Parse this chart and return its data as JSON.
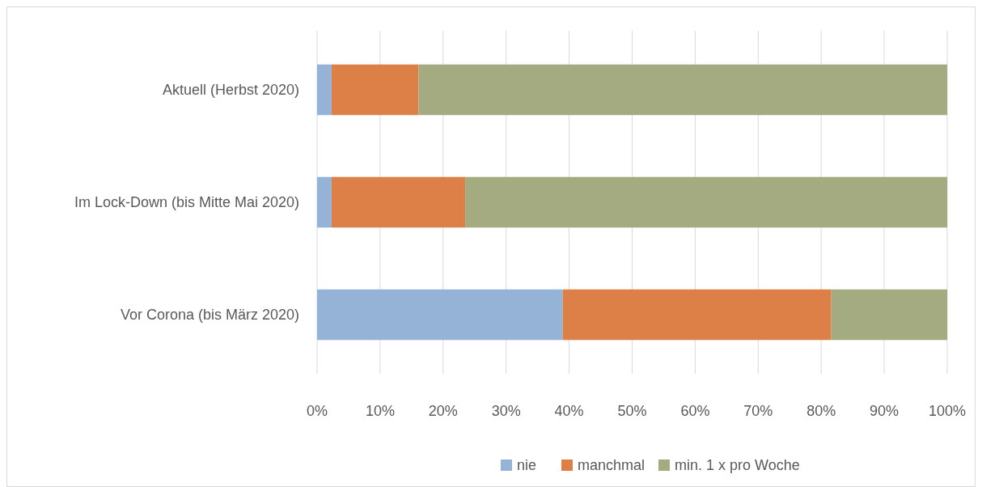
{
  "chart_data": {
    "type": "bar",
    "orientation": "horizontal",
    "stacked": true,
    "categories": [
      "Aktuell (Herbst 2020)",
      "Im Lock-Down (bis Mitte Mai 2020)",
      "Vor Corona (bis März 2020)"
    ],
    "series": [
      {
        "name": "nie",
        "color": "#95b3d7",
        "values": [
          2.3,
          2.3,
          39.0
        ]
      },
      {
        "name": "manchmal",
        "color": "#dd8047",
        "values": [
          13.8,
          21.2,
          42.6
        ]
      },
      {
        "name": "min. 1 x pro Woche",
        "color": "#a5ab81",
        "values": [
          83.9,
          76.5,
          18.4
        ]
      }
    ],
    "xlim": [
      0,
      100
    ],
    "xticks": [
      {
        "value": 0,
        "label": "0%"
      },
      {
        "value": 10,
        "label": "10%"
      },
      {
        "value": 20,
        "label": "20%"
      },
      {
        "value": 30,
        "label": "30%"
      },
      {
        "value": 40,
        "label": "40%"
      },
      {
        "value": 50,
        "label": "50%"
      },
      {
        "value": 60,
        "label": "60%"
      },
      {
        "value": 70,
        "label": "70%"
      },
      {
        "value": 80,
        "label": "80%"
      },
      {
        "value": 90,
        "label": "90%"
      },
      {
        "value": 100,
        "label": "100%"
      }
    ],
    "grid": "x",
    "legend": "bottom"
  }
}
